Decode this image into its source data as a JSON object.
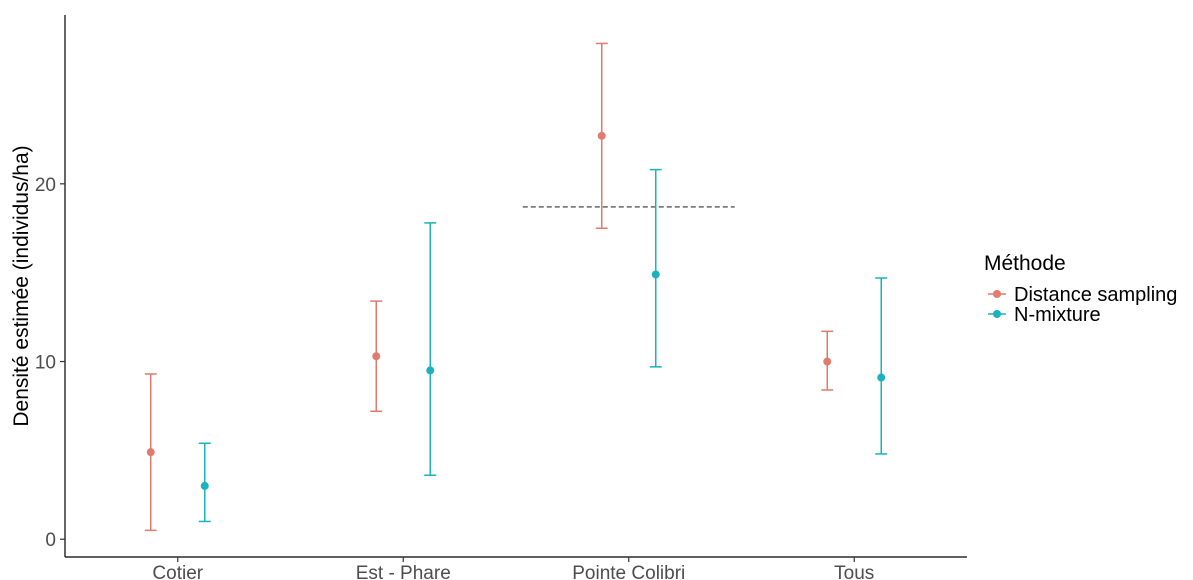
{
  "chart_data": {
    "type": "scatter",
    "subtype": "point-with-errorbars",
    "title": "",
    "xlabel": "",
    "ylabel": "Densité estimée (individus/ha)",
    "categories": [
      "Cotier",
      "Est - Phare",
      "Pointe Colibri",
      "Tous"
    ],
    "ylim": [
      -1,
      29.5
    ],
    "yticks": [
      0,
      10,
      20
    ],
    "grid": false,
    "legend": {
      "title": "Méthode",
      "position": "right"
    },
    "series": [
      {
        "name": "Distance sampling",
        "color": "#e07b6e",
        "values": [
          4.9,
          10.3,
          22.7,
          10.0
        ],
        "lower": [
          0.5,
          7.2,
          17.5,
          8.4
        ],
        "upper": [
          9.3,
          13.4,
          27.9,
          11.7
        ]
      },
      {
        "name": "N-mixture",
        "color": "#1ab2bd",
        "values": [
          3.0,
          9.5,
          14.9,
          9.1
        ],
        "lower": [
          1.0,
          3.6,
          9.7,
          4.8
        ],
        "upper": [
          5.4,
          17.8,
          20.8,
          14.7
        ]
      }
    ],
    "reference_line": {
      "category": "Pointe Colibri",
      "y": 18.7,
      "style": "dashed",
      "color": "#333333"
    }
  }
}
